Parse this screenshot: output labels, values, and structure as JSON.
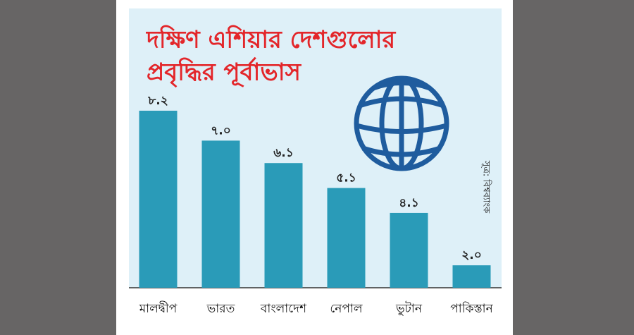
{
  "chart_data": {
    "type": "bar",
    "title": [
      "দক্ষিণ এশিয়ার দেশগুলোর",
      "প্রবৃদ্ধির পূর্বাভাস"
    ],
    "source": "সূত্র: বিশ্বব্যাংক",
    "categories": [
      "মালদ্বীপ",
      "ভারত",
      "বাংলাদেশ",
      "নেপাল",
      "ভুটান",
      "পাকিস্তান"
    ],
    "values": [
      8.2,
      7.0,
      6.1,
      5.1,
      4.1,
      2.0
    ],
    "value_labels": [
      "৮.২",
      "৭.০",
      "৬.১",
      "৫.১",
      "৪.১",
      "২.০"
    ],
    "color": "#2a9bb8",
    "ylim": [
      1.1,
      9.5
    ]
  }
}
